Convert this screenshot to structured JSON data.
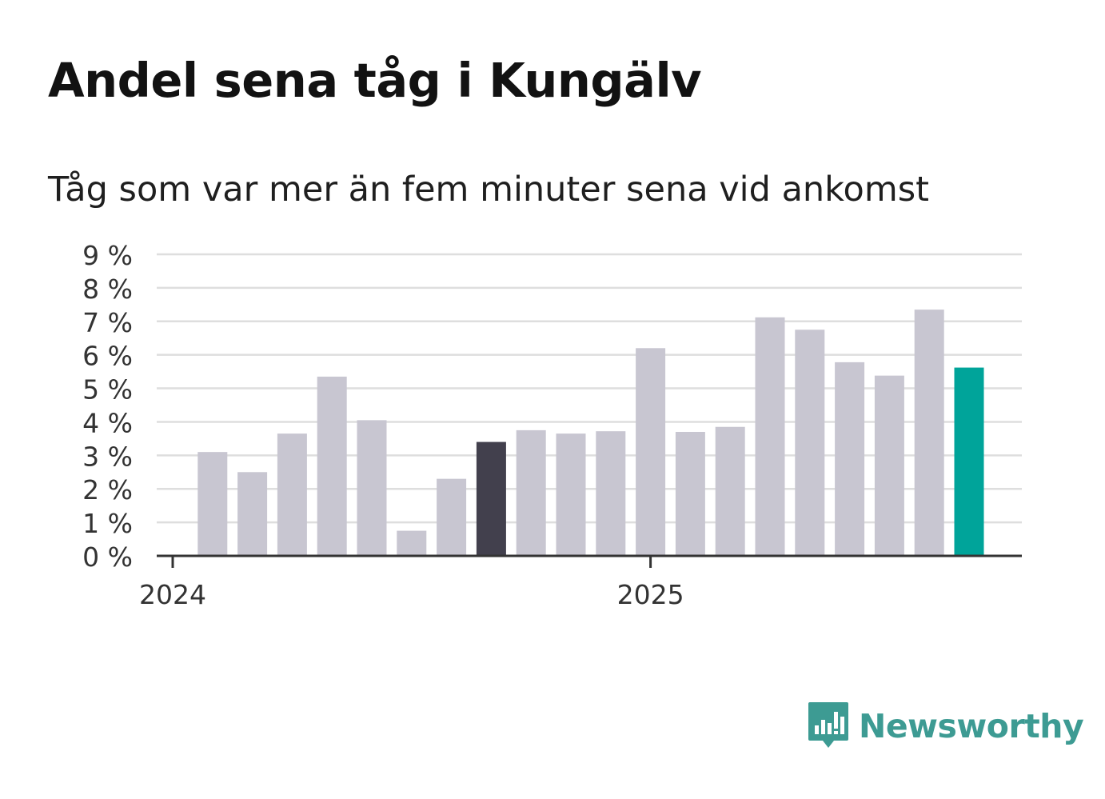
{
  "title": "Andel sena tåg i Kungälv",
  "subtitle": "Tåg som var mer än fem minuter sena vid ankomst",
  "brand": {
    "name": "Newsworthy",
    "logo_icon": "bar-chart-speech-bubble-icon",
    "color": "#3d9b93"
  },
  "chart_data": {
    "type": "bar",
    "title": "Andel sena tåg i Kungälv",
    "subtitle": "Tåg som var mer än fem minuter sena vid ankomst",
    "xlabel": "",
    "ylabel": "",
    "ylim": [
      0,
      9
    ],
    "y_ticks": [
      0,
      1,
      2,
      3,
      4,
      5,
      6,
      7,
      8,
      9
    ],
    "y_tick_labels": [
      "0 %",
      "1 %",
      "2 %",
      "3 %",
      "4 %",
      "5 %",
      "6 %",
      "7 %",
      "8 %",
      "9 %"
    ],
    "x_ticks": [
      "2024",
      "2025"
    ],
    "x_tick_categories": [
      "2024-01",
      "2025-01"
    ],
    "categories": [
      "2024-01",
      "2024-02",
      "2024-03",
      "2024-04",
      "2024-05",
      "2024-06",
      "2024-07",
      "2024-08",
      "2024-09",
      "2024-10",
      "2024-11",
      "2024-12",
      "2025-01",
      "2025-02",
      "2025-03",
      "2025-04",
      "2025-05",
      "2025-06",
      "2025-07",
      "2025-08",
      "2025-09",
      "2025-10",
      "2025-11"
    ],
    "values": [
      null,
      3.1,
      2.5,
      3.65,
      5.35,
      4.05,
      0.75,
      2.3,
      3.4,
      3.75,
      3.65,
      3.72,
      6.2,
      3.7,
      3.85,
      7.12,
      6.75,
      5.78,
      5.38,
      7.35,
      5.62,
      null,
      null
    ],
    "bar_colors": [
      "#c8c6d1",
      "#c8c6d1",
      "#c8c6d1",
      "#c8c6d1",
      "#c8c6d1",
      "#c8c6d1",
      "#c8c6d1",
      "#c8c6d1",
      "#42404d",
      "#c8c6d1",
      "#c8c6d1",
      "#c8c6d1",
      "#c8c6d1",
      "#c8c6d1",
      "#c8c6d1",
      "#c8c6d1",
      "#c8c6d1",
      "#c8c6d1",
      "#c8c6d1",
      "#c8c6d1",
      "#00a49a",
      "#c8c6d1",
      "#c8c6d1"
    ],
    "colors": {
      "default_bar": "#c8c6d1",
      "highlight_previous_year": "#42404d",
      "latest": "#00a49a",
      "grid": "#dedede",
      "axis": "#333333"
    },
    "grid": true,
    "legend": "none"
  }
}
